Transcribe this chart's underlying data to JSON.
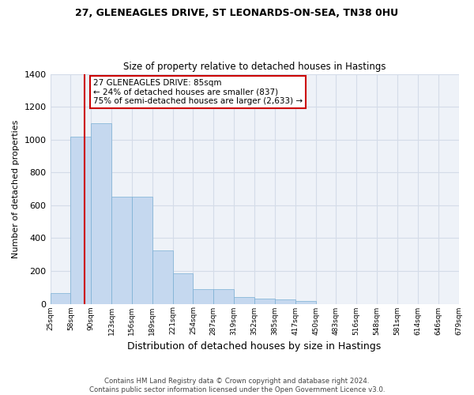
{
  "title1": "27, GLENEAGLES DRIVE, ST LEONARDS-ON-SEA, TN38 0HU",
  "title2": "Size of property relative to detached houses in Hastings",
  "xlabel": "Distribution of detached houses by size in Hastings",
  "ylabel": "Number of detached properties",
  "bar_values": [
    65,
    1020,
    1100,
    650,
    650,
    325,
    185,
    90,
    90,
    42,
    30,
    25,
    15,
    0,
    0,
    0,
    0,
    0,
    0,
    0
  ],
  "bin_labels": [
    "25sqm",
    "58sqm",
    "90sqm",
    "123sqm",
    "156sqm",
    "189sqm",
    "221sqm",
    "254sqm",
    "287sqm",
    "319sqm",
    "352sqm",
    "385sqm",
    "417sqm",
    "450sqm",
    "483sqm",
    "516sqm",
    "548sqm",
    "581sqm",
    "614sqm",
    "646sqm",
    "679sqm"
  ],
  "bar_color": "#c5d8ef",
  "bar_edge_color": "#7aafd4",
  "bg_color": "#eef2f8",
  "grid_color": "#d4dce8",
  "fig_color": "#ffffff",
  "vline_x_bin": 1,
  "vline_color": "#cc0000",
  "annotation_text": "27 GLENEAGLES DRIVE: 85sqm\n← 24% of detached houses are smaller (837)\n75% of semi-detached houses are larger (2,633) →",
  "annotation_box_color": "#ffffff",
  "annotation_box_edge": "#cc0000",
  "footer1": "Contains HM Land Registry data © Crown copyright and database right 2024.",
  "footer2": "Contains public sector information licensed under the Open Government Licence v3.0.",
  "ylim": [
    0,
    1400
  ],
  "yticks": [
    0,
    200,
    400,
    600,
    800,
    1000,
    1200,
    1400
  ]
}
